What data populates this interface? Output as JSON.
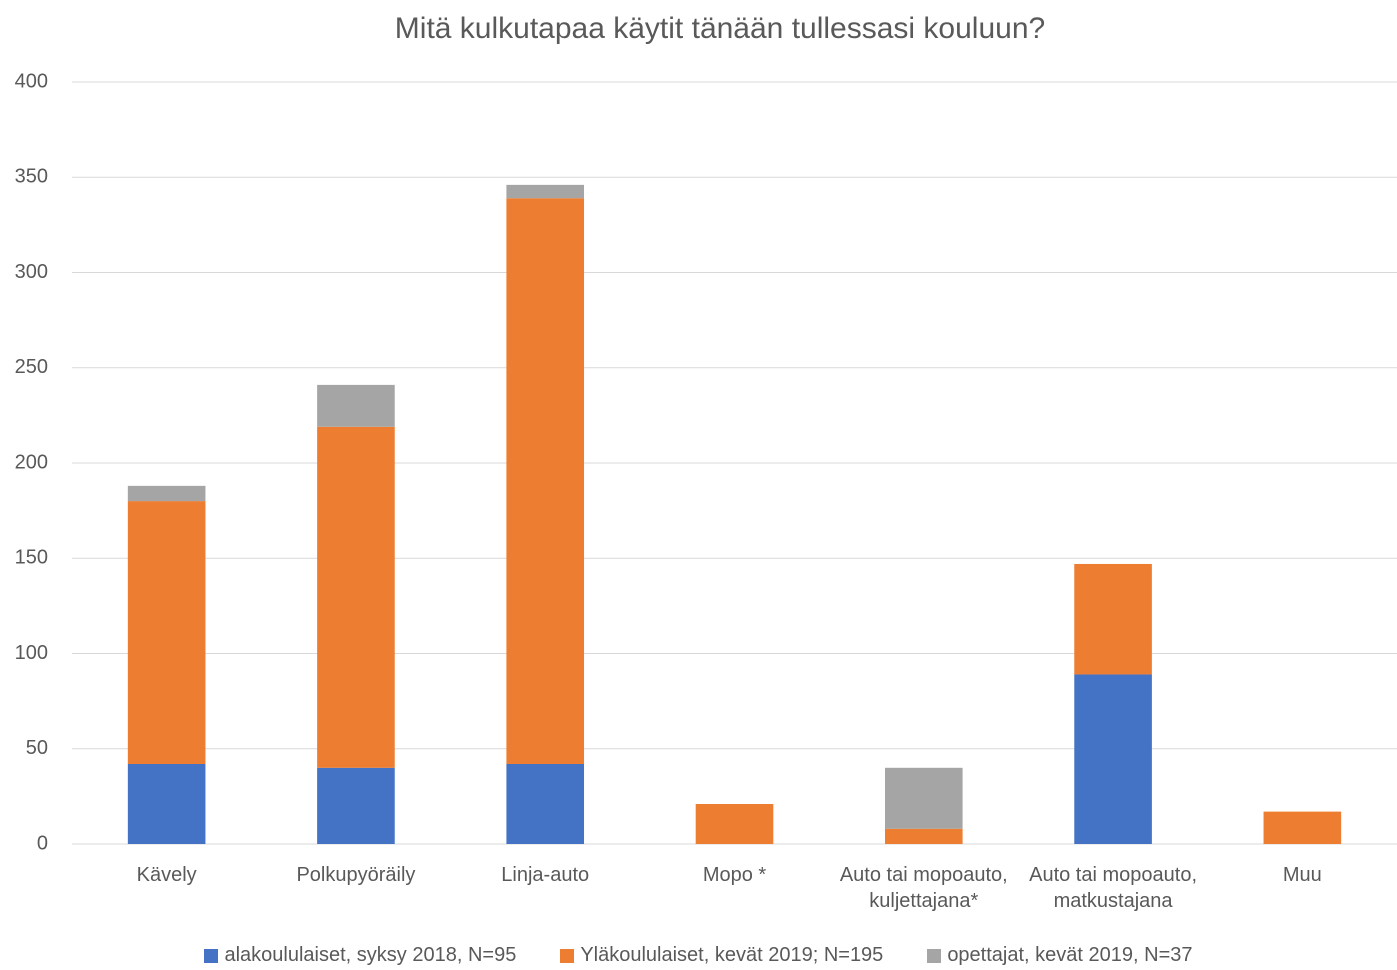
{
  "chart_data": {
    "type": "stacked_bar",
    "title": "Mitä kulkutapaa käytit tänään tullessasi kouluun?",
    "categories": [
      "Kävely",
      "Polkupyöräily",
      "Linja-auto",
      "Mopo *",
      "Auto tai mopoauto, kuljettajana*",
      "Auto tai mopoauto, matkustajana",
      "Muu"
    ],
    "series": [
      {
        "name": "alakoululaiset, syksy 2018, N=95",
        "color": "#4472c4",
        "values": [
          42,
          40,
          42,
          0,
          0,
          89,
          0
        ]
      },
      {
        "name": "Yläkoululaiset, kevät 2019; N=195",
        "color": "#ed7d31",
        "values": [
          138,
          179,
          297,
          21,
          8,
          58,
          17
        ]
      },
      {
        "name": "opettajat, kevät 2019, N=37",
        "color": "#a5a5a5",
        "values": [
          8,
          22,
          7,
          0,
          32,
          0,
          0
        ]
      }
    ],
    "ylim": [
      0,
      400
    ],
    "yticks": [
      0,
      50,
      100,
      150,
      200,
      250,
      300,
      350,
      400
    ],
    "grid": true,
    "legend": "bottom"
  }
}
